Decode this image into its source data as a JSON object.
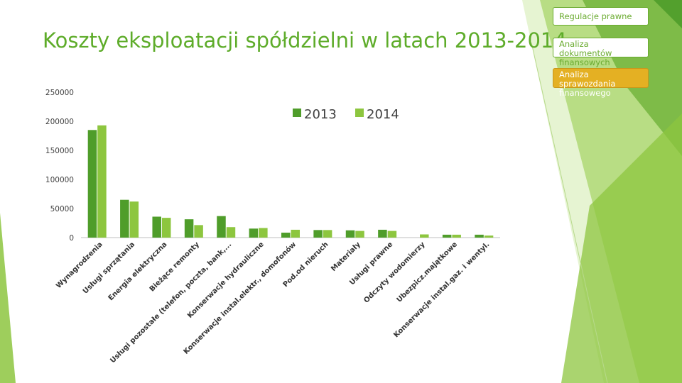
{
  "slide": {
    "title": "Koszty eksploatacji spółdzielni w latach 2013-2014",
    "nav": [
      "Regulacje prawne",
      "Analiza dokumentów finansowych",
      "Analiza sprawozdania finansowego"
    ]
  },
  "colors": {
    "title": "#5eac2a",
    "series_2013": "#4f9d2a",
    "series_2014": "#8dc63f",
    "nav_border": "#6aab2f",
    "nav_active": "#e4b023"
  },
  "chart_data": {
    "type": "bar",
    "categories": [
      "Wynagrodzenia",
      "Usługi sprzątania",
      "Energia elektryczna",
      "Bieżące remonty",
      "Usługi pozostałe (telefon, poczta, bank,...",
      "Konserwacje hydrauliczne",
      "Konserwacje instal.elektr., domofonów",
      "Pod.od nieruch",
      "Materiały",
      "Usługi prawne",
      "Odczyty wodomierzy",
      "Ubezpicz.majątkowe",
      "Konserwacje instal.gaz. i wentyl."
    ],
    "series": [
      {
        "name": "2013",
        "values": [
          185000,
          65000,
          36000,
          31500,
          37000,
          15500,
          8500,
          13000,
          12500,
          13500,
          0,
          5000,
          5000
        ]
      },
      {
        "name": "2014",
        "values": [
          193000,
          62000,
          34000,
          21500,
          18000,
          16500,
          13500,
          13000,
          11500,
          11500,
          5500,
          5000,
          3500
        ]
      }
    ],
    "yticks": [
      0,
      50000,
      100000,
      150000,
      200000,
      250000
    ],
    "ylim": [
      0,
      250000
    ],
    "legend": "top-center",
    "grid": false
  }
}
